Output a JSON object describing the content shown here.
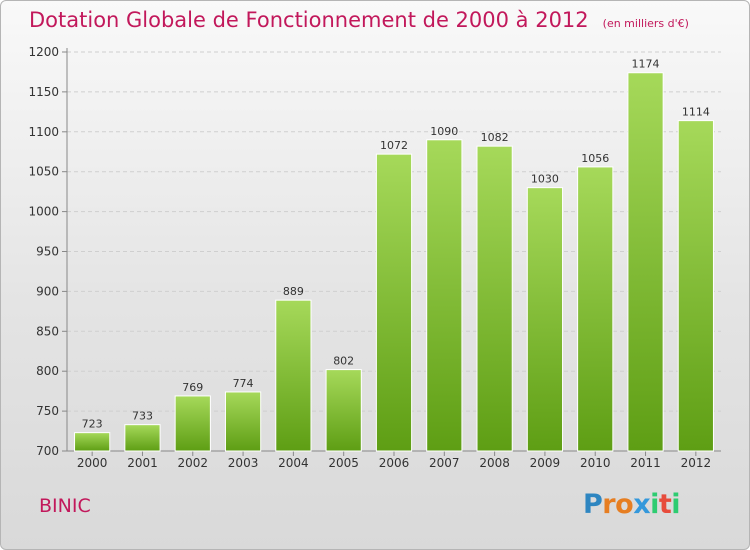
{
  "title": "Dotation Globale de Fonctionnement de 2000 à 2012",
  "unit_note": "(en milliers d'€)",
  "commune": "BINIC",
  "logo": {
    "text": "Proxiti",
    "colors": [
      "#2e86c1",
      "#e67e22",
      "#e67e22",
      "#3498db",
      "#2ecc71",
      "#e74c3c",
      "#2ecc71"
    ]
  },
  "colors": {
    "bar_top": "#a6d95a",
    "bar_bottom": "#5e9e14",
    "title": "#c2185b"
  },
  "chart_data": {
    "type": "bar",
    "title": "Dotation Globale de Fonctionnement de 2000 à 2012",
    "subtitle": "(en milliers d'€)",
    "categories": [
      "2000",
      "2001",
      "2002",
      "2003",
      "2004",
      "2005",
      "2006",
      "2007",
      "2008",
      "2009",
      "2010",
      "2011",
      "2012"
    ],
    "values": [
      723,
      733,
      769,
      774,
      889,
      802,
      1072,
      1090,
      1082,
      1030,
      1056,
      1174,
      1114
    ],
    "ylim": [
      700,
      1200
    ],
    "yticks": [
      700,
      750,
      800,
      850,
      900,
      950,
      1000,
      1050,
      1100,
      1150,
      1200
    ],
    "grid": true,
    "xlabel": "",
    "ylabel": ""
  }
}
